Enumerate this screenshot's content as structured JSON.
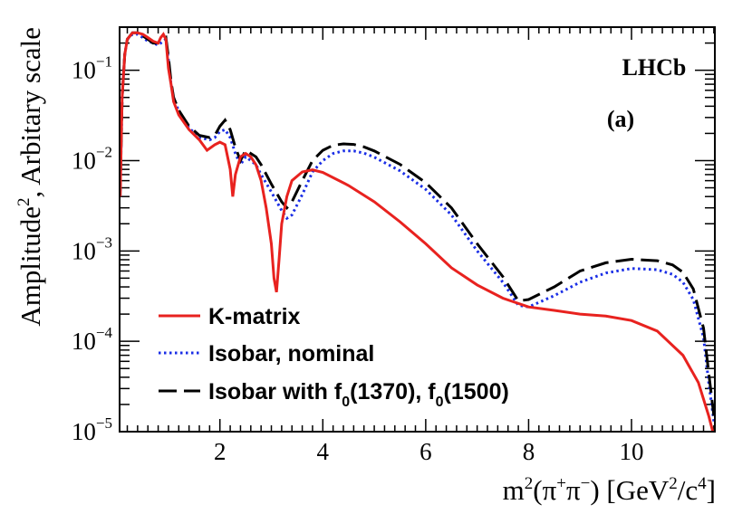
{
  "chart_data": {
    "type": "line",
    "yscale": "log",
    "xlim": [
      0.05,
      11.62
    ],
    "ylim": [
      1e-05,
      0.3
    ],
    "xticks": [
      2,
      4,
      6,
      8,
      10
    ],
    "xtick_labels": [
      "2",
      "4",
      "6",
      "8",
      "10"
    ],
    "yticks": [
      1e-05,
      0.0001,
      0.001,
      0.01,
      0.1
    ],
    "ytick_labels": [
      {
        "base": "10",
        "exp": "−5"
      },
      {
        "base": "10",
        "exp": "−4"
      },
      {
        "base": "10",
        "exp": "−3"
      },
      {
        "base": "10",
        "exp": "−2"
      },
      {
        "base": "10",
        "exp": "−1"
      }
    ],
    "xlabel": {
      "a": "m",
      "b": "2",
      "c": "(π",
      "d": "+",
      "e": "π",
      "f": "−",
      "g": ") [GeV",
      "h": "2",
      "i": "/c",
      "j": "4",
      "k": "]"
    },
    "ylabel": {
      "a": "Amplitude",
      "b": "2",
      "c": ", Arbitary scale"
    },
    "annotations": {
      "experiment": "LHCb",
      "panel": "(a)"
    },
    "legend": {
      "kmatrix": "K-matrix",
      "nominal": "Isobar, nominal",
      "with": {
        "a": "Isobar with f",
        "b": "0",
        "c": "(1370), f",
        "d": "0",
        "e": "(1500)"
      }
    },
    "colors": {
      "kmatrix": "#e8221f",
      "nominal": "#1a2ee6",
      "with": "#000000"
    },
    "series": [
      {
        "name": "K-matrix",
        "key": "kmatrix",
        "style": "solid",
        "x": [
          0.06,
          0.1,
          0.15,
          0.2,
          0.3,
          0.4,
          0.5,
          0.6,
          0.7,
          0.8,
          0.85,
          0.9,
          0.95,
          1.0,
          1.05,
          1.1,
          1.2,
          1.4,
          1.6,
          1.75,
          1.9,
          2.0,
          2.1,
          2.2,
          2.25,
          2.3,
          2.4,
          2.5,
          2.6,
          2.7,
          2.8,
          2.9,
          3.0,
          3.05,
          3.1,
          3.15,
          3.2,
          3.3,
          3.4,
          3.6,
          3.8,
          4.0,
          4.5,
          5.0,
          5.5,
          6.0,
          6.5,
          7.0,
          7.5,
          8.0,
          8.5,
          9.0,
          9.5,
          10.0,
          10.5,
          11.0,
          11.3,
          11.5,
          11.6
        ],
        "y": [
          0.004,
          0.05,
          0.15,
          0.22,
          0.26,
          0.26,
          0.25,
          0.23,
          0.21,
          0.2,
          0.23,
          0.25,
          0.22,
          0.105,
          0.07,
          0.045,
          0.032,
          0.022,
          0.017,
          0.013,
          0.015,
          0.016,
          0.015,
          0.008,
          0.004,
          0.007,
          0.011,
          0.012,
          0.011,
          0.009,
          0.006,
          0.003,
          0.0012,
          0.0005,
          0.00035,
          0.0008,
          0.002,
          0.004,
          0.006,
          0.0075,
          0.0079,
          0.0074,
          0.0053,
          0.0035,
          0.0021,
          0.0012,
          0.00065,
          0.00042,
          0.0003,
          0.00024,
          0.00022,
          0.0002,
          0.00019,
          0.00017,
          0.00013,
          7e-05,
          3.5e-05,
          1.5e-05,
          9e-06
        ]
      },
      {
        "name": "Isobar, nominal",
        "key": "nominal",
        "style": "dotted",
        "x": [
          0.06,
          0.1,
          0.15,
          0.2,
          0.3,
          0.4,
          0.5,
          0.6,
          0.7,
          0.8,
          0.9,
          0.95,
          1.0,
          1.05,
          1.1,
          1.2,
          1.4,
          1.6,
          1.8,
          1.9,
          2.0,
          2.1,
          2.2,
          2.3,
          2.4,
          2.5,
          2.6,
          2.7,
          2.8,
          3.0,
          3.2,
          3.3,
          3.4,
          3.6,
          3.8,
          4.0,
          4.2,
          4.4,
          4.6,
          4.8,
          5.0,
          5.5,
          6.0,
          6.5,
          7.0,
          7.5,
          7.8,
          8.0,
          8.5,
          9.0,
          9.5,
          10.0,
          10.5,
          10.8,
          11.0,
          11.2,
          11.4,
          11.5,
          11.6
        ],
        "y": [
          0.004,
          0.05,
          0.15,
          0.22,
          0.25,
          0.25,
          0.23,
          0.21,
          0.2,
          0.19,
          0.21,
          0.22,
          0.13,
          0.07,
          0.05,
          0.035,
          0.023,
          0.018,
          0.017,
          0.018,
          0.021,
          0.022,
          0.018,
          0.012,
          0.009,
          0.011,
          0.01,
          0.009,
          0.007,
          0.0045,
          0.0028,
          0.0023,
          0.0025,
          0.0042,
          0.0075,
          0.01,
          0.012,
          0.0128,
          0.0128,
          0.0121,
          0.0109,
          0.0077,
          0.0048,
          0.0025,
          0.001,
          0.00045,
          0.00025,
          0.00024,
          0.00032,
          0.00045,
          0.00057,
          0.00064,
          0.00062,
          0.00055,
          0.00045,
          0.00029,
          0.00011,
          3.5e-05,
          1.3e-05
        ]
      },
      {
        "name": "Isobar with f0(1370), f0(1500)",
        "key": "with",
        "style": "dashed",
        "x": [
          0.06,
          0.1,
          0.15,
          0.2,
          0.3,
          0.4,
          0.5,
          0.6,
          0.7,
          0.8,
          0.9,
          0.95,
          1.0,
          1.05,
          1.1,
          1.2,
          1.4,
          1.6,
          1.8,
          1.9,
          2.0,
          2.1,
          2.2,
          2.3,
          2.4,
          2.5,
          2.6,
          2.7,
          2.8,
          3.0,
          3.2,
          3.3,
          3.4,
          3.6,
          3.8,
          4.0,
          4.2,
          4.4,
          4.6,
          4.8,
          5.0,
          5.5,
          6.0,
          6.5,
          7.0,
          7.5,
          7.8,
          8.0,
          8.5,
          9.0,
          9.5,
          10.0,
          10.5,
          10.8,
          11.0,
          11.2,
          11.4,
          11.5,
          11.6
        ],
        "y": [
          0.004,
          0.05,
          0.15,
          0.22,
          0.26,
          0.26,
          0.24,
          0.22,
          0.2,
          0.2,
          0.22,
          0.23,
          0.14,
          0.075,
          0.05,
          0.036,
          0.024,
          0.019,
          0.018,
          0.019,
          0.024,
          0.028,
          0.022,
          0.014,
          0.01,
          0.013,
          0.012,
          0.011,
          0.009,
          0.0055,
          0.0035,
          0.003,
          0.0035,
          0.006,
          0.01,
          0.013,
          0.0148,
          0.0153,
          0.0151,
          0.0142,
          0.0128,
          0.0091,
          0.0057,
          0.003,
          0.0012,
          0.00052,
          0.00028,
          0.00029,
          0.0004,
          0.0006,
          0.00074,
          0.00081,
          0.00078,
          0.0007,
          0.00058,
          0.00038,
          0.00014,
          4.5e-05,
          1.5e-05
        ]
      }
    ]
  }
}
